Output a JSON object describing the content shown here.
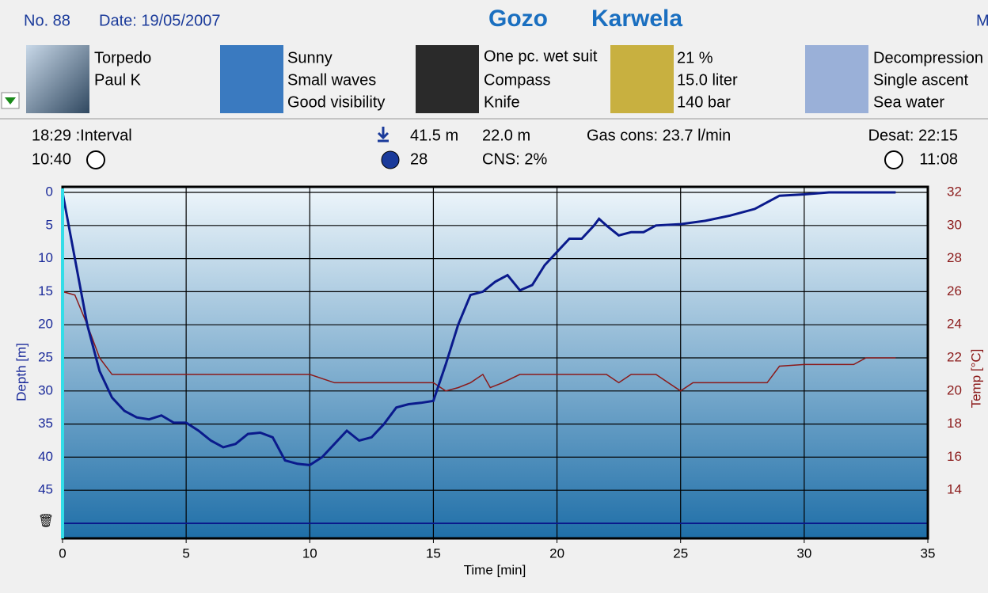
{
  "header": {
    "number": "No. 88",
    "date": "Date: 19/05/2007",
    "site": "Gozo",
    "location": "Karwela",
    "cut": "M"
  },
  "panels": [
    {
      "lines": [
        "Torpedo",
        "Paul K"
      ]
    },
    {
      "lines": [
        "Sunny",
        "Small waves",
        "Good visibility"
      ]
    },
    {
      "lines": [
        "One pc. wet suit",
        "Compass",
        "Knife"
      ]
    },
    {
      "lines": [
        "21 %",
        "15.0 liter",
        "140 bar"
      ]
    },
    {
      "lines": [
        "Decompression",
        "Single ascent",
        "Sea water"
      ]
    }
  ],
  "stats": {
    "interval": "18:29 :Interval",
    "start": "10:40",
    "max_depth": "41.5 m",
    "duration": "28",
    "avg_depth": "22.0 m",
    "cns": "CNS:  2%",
    "gas": "Gas cons: 23.7 l/min",
    "desat": "Desat: 22:15",
    "end": "11:08"
  },
  "chart_data": {
    "type": "line",
    "xlabel": "Time [min]",
    "ylabel": "Depth [m]",
    "y2label": "Temp [°C]",
    "xlim": [
      0,
      35
    ],
    "xticks": [
      0,
      5,
      10,
      15,
      20,
      25,
      30,
      35
    ],
    "ylim": [
      50,
      0
    ],
    "yticks": [
      0,
      5,
      10,
      15,
      20,
      25,
      30,
      35,
      40,
      45
    ],
    "y2lim": [
      12,
      32
    ],
    "y2ticks": [
      14,
      16,
      18,
      20,
      22,
      24,
      26,
      28,
      30,
      32
    ],
    "grid": true,
    "series": [
      {
        "color": "#0a1a8c",
        "x": [
          0,
          0.2,
          0.5,
          1,
          1.5,
          2,
          2.5,
          3,
          3.5,
          4,
          4.5,
          5,
          5.5,
          6,
          6.5,
          7,
          7.5,
          8,
          8.5,
          9,
          9.5,
          10,
          10.5,
          11,
          11.5,
          12,
          12.5,
          13,
          13.5,
          14,
          14.5,
          15,
          15.5,
          16,
          16.5,
          17,
          17.5,
          18,
          18.5,
          19,
          19.5,
          20,
          20.5,
          21,
          21.5,
          21.7,
          22,
          22.5,
          23,
          23.5,
          24,
          25,
          26,
          27,
          28,
          29,
          30,
          31,
          33.7
        ],
        "values": [
          0,
          4,
          10,
          20,
          27,
          31,
          33,
          34,
          34.3,
          33.7,
          34.8,
          34.8,
          36,
          37.5,
          38.5,
          38,
          36.5,
          36.3,
          37,
          40.5,
          41,
          41.2,
          40,
          38,
          36,
          37.5,
          37,
          35,
          32.5,
          32,
          31.8,
          31.5,
          26,
          20,
          15.5,
          15,
          13.5,
          12.5,
          14.8,
          14,
          11,
          9,
          7,
          7,
          5,
          4,
          5,
          6.5,
          6,
          6,
          5,
          4.8,
          4.3,
          3.5,
          2.5,
          0.5,
          0.3,
          0,
          0
        ]
      },
      {
        "color": "#8b1a1a",
        "axis": "y2",
        "x": [
          0,
          0.5,
          1,
          1.5,
          2,
          3,
          10,
          11,
          15,
          15.5,
          16,
          16.5,
          17,
          17.3,
          17.8,
          18.5,
          22,
          22.5,
          23,
          24,
          24.5,
          25,
          25.5,
          28.5,
          29,
          30,
          32,
          32.5,
          33.7
        ],
        "values": [
          26,
          25.8,
          24,
          22,
          21,
          21,
          21,
          20.5,
          20.5,
          20,
          20.2,
          20.5,
          21,
          20.2,
          20.5,
          21,
          21,
          20.5,
          21,
          21,
          20.5,
          20,
          20.5,
          20.5,
          21.5,
          21.6,
          21.6,
          22,
          22
        ]
      }
    ]
  }
}
